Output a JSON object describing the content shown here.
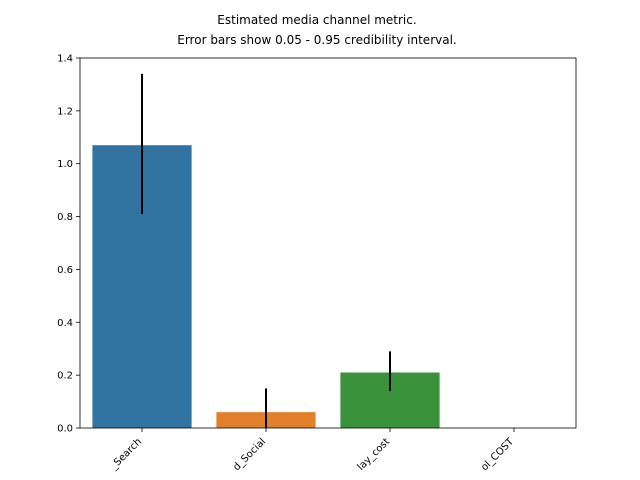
{
  "chart_data": {
    "type": "bar",
    "title_line1": "Estimated media channel metric.",
    "title_line2": "Error bars show 0.05 - 0.95 credibility interval.",
    "xlabel": "",
    "ylabel": "",
    "categories": [
      "_Search",
      "d_Social",
      "lay_cost",
      "ol_COST"
    ],
    "values": [
      1.07,
      0.06,
      0.21,
      0.0
    ],
    "error_low": [
      0.81,
      0.0,
      0.14,
      0.0
    ],
    "error_high": [
      1.34,
      0.15,
      0.29,
      0.0
    ],
    "colors": [
      "#3274a1",
      "#e1812c",
      "#3a923a",
      "#c03d3e"
    ],
    "ylim": [
      0,
      1.4
    ],
    "yticks": [
      0.0,
      0.2,
      0.4,
      0.6,
      0.8,
      1.0,
      1.2,
      1.4
    ],
    "ytick_labels": [
      "0.0",
      "0.2",
      "0.4",
      "0.6",
      "0.8",
      "1.0",
      "1.2",
      "1.4"
    ],
    "grid": false,
    "legend": "none"
  }
}
